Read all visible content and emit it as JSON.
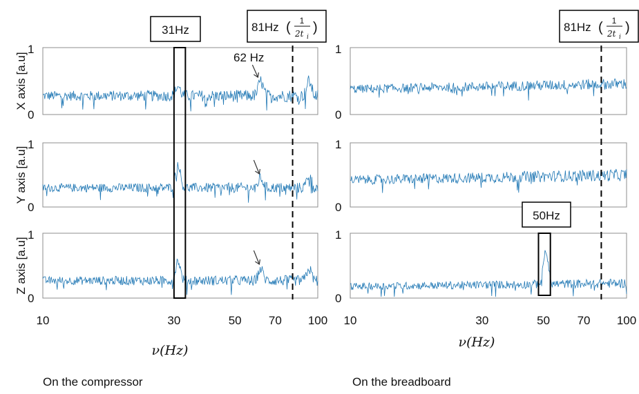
{
  "chart_data": [
    {
      "type": "line",
      "panel": "left",
      "row": 0,
      "ylabel": "X axis [a.u]",
      "yticks": [
        "1",
        "0"
      ],
      "ylim": [
        0,
        1
      ],
      "xlim": [
        10,
        100
      ],
      "xscale": "log",
      "grid": false,
      "series": [
        {
          "baseline": 0.28,
          "noise": 0.08,
          "rise": 0.0,
          "peaks": [
            {
              "x": 31,
              "y": 0.42
            },
            {
              "x": 62,
              "y": 0.5
            },
            {
              "x": 93,
              "y": 0.5
            }
          ]
        }
      ]
    },
    {
      "type": "line",
      "panel": "left",
      "row": 1,
      "ylabel": "Y axis [a.u]",
      "yticks": [
        "1",
        "0"
      ],
      "ylim": [
        0,
        1
      ],
      "xlim": [
        10,
        100
      ],
      "xscale": "log",
      "grid": false,
      "series": [
        {
          "baseline": 0.3,
          "noise": 0.07,
          "rise": 0.0,
          "peaks": [
            {
              "x": 31,
              "y": 0.68
            },
            {
              "x": 62,
              "y": 0.45
            },
            {
              "x": 93,
              "y": 0.5
            }
          ]
        }
      ]
    },
    {
      "type": "line",
      "panel": "left",
      "row": 2,
      "ylabel": "Z axis [a.u]",
      "yticks": [
        "1",
        "0"
      ],
      "ylim": [
        0,
        1
      ],
      "xlim": [
        10,
        100
      ],
      "xscale": "log",
      "grid": false,
      "xticks": [
        "10",
        "30",
        "50",
        "70",
        "100"
      ],
      "xtick_values": [
        10,
        30,
        50,
        70,
        100
      ],
      "series": [
        {
          "baseline": 0.27,
          "noise": 0.07,
          "rise": 0.0,
          "peaks": [
            {
              "x": 31,
              "y": 0.58
            },
            {
              "x": 62,
              "y": 0.45
            },
            {
              "x": 93,
              "y": 0.45
            }
          ]
        }
      ]
    },
    {
      "type": "line",
      "panel": "right",
      "row": 0,
      "ylabel": "",
      "yticks": [
        "1",
        "0"
      ],
      "ylim": [
        0,
        1
      ],
      "xlim": [
        10,
        100
      ],
      "xscale": "log",
      "grid": false,
      "series": [
        {
          "baseline": 0.38,
          "noise": 0.07,
          "rise": 0.08,
          "peaks": []
        }
      ]
    },
    {
      "type": "line",
      "panel": "right",
      "row": 1,
      "ylabel": "",
      "yticks": [
        "1",
        "0"
      ],
      "ylim": [
        0,
        1
      ],
      "xlim": [
        10,
        100
      ],
      "xscale": "log",
      "grid": false,
      "series": [
        {
          "baseline": 0.42,
          "noise": 0.08,
          "rise": 0.08,
          "peaks": []
        }
      ]
    },
    {
      "type": "line",
      "panel": "right",
      "row": 2,
      "ylabel": "",
      "yticks": [
        "1",
        "0"
      ],
      "ylim": [
        0,
        1
      ],
      "xlim": [
        10,
        100
      ],
      "xscale": "log",
      "grid": false,
      "xticks": [
        "10",
        "30",
        "50",
        "70",
        "100"
      ],
      "xtick_values": [
        10,
        30,
        50,
        70,
        100
      ],
      "series": [
        {
          "baseline": 0.18,
          "noise": 0.06,
          "rise": 0.05,
          "peaks": [
            {
              "x": 51,
              "y": 0.7
            }
          ]
        }
      ]
    }
  ],
  "annotations": {
    "left_box_label": "31Hz",
    "left_box_x": [
      30,
      33
    ],
    "peak_62_label": "62 Hz",
    "peak_62_x": 62,
    "cutoff_label": "81Hz",
    "cutoff_frac_num": "1",
    "cutoff_frac_den": "2t",
    "cutoff_frac_sub": "i",
    "cutoff_x": 81,
    "right_box_label": "50Hz",
    "right_box_x": [
      48,
      53
    ]
  },
  "xlabel": "ν(Hz)",
  "captions": {
    "left": "On the compressor",
    "right": "On the breadboard"
  },
  "colors": {
    "line": "#1f77b4",
    "axes": "#8c8c8c",
    "box": "#000000"
  }
}
